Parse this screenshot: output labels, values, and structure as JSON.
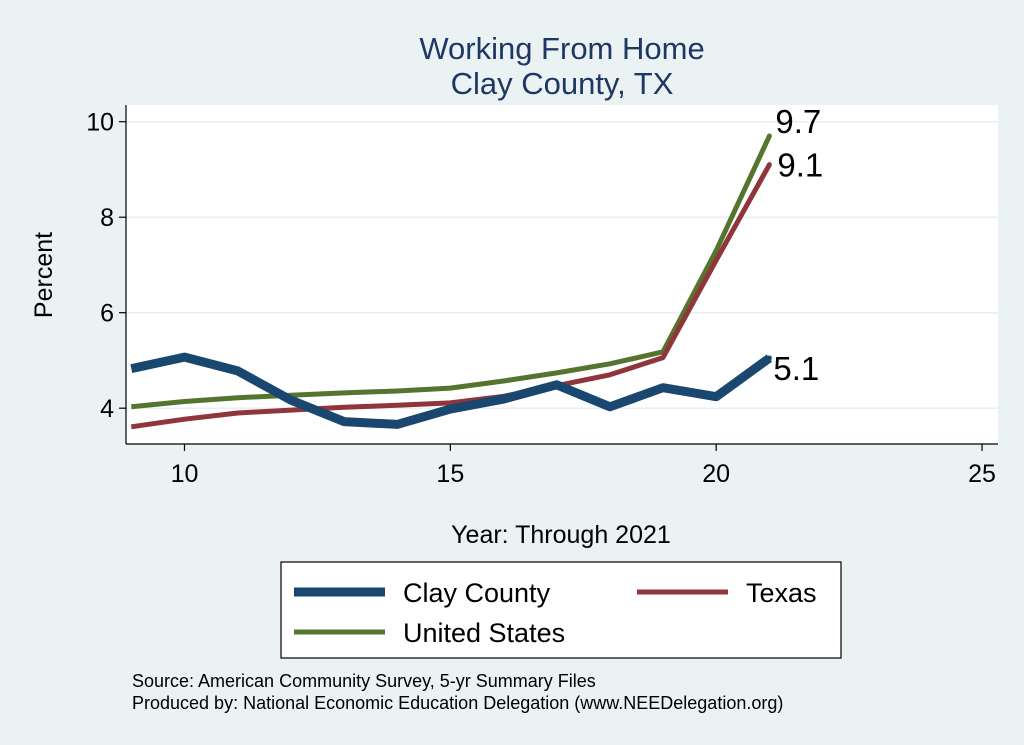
{
  "chart_data": {
    "type": "line",
    "title": "Working From Home",
    "subtitle": "Clay County, TX",
    "xlabel": "Year: Through 2021",
    "ylabel": "Percent",
    "xlim": [
      8.9,
      25.3
    ],
    "ylim": [
      3.25,
      10.35
    ],
    "xticks": [
      10,
      15,
      20,
      25
    ],
    "yticks": [
      4,
      6,
      8,
      10
    ],
    "grid": true,
    "x": [
      9,
      10,
      11,
      12,
      13,
      14,
      15,
      16,
      17,
      18,
      19,
      20,
      21
    ],
    "series": [
      {
        "name": "Clay County",
        "color": "#1a476f",
        "stroke": "thick",
        "values": [
          4.83,
          5.07,
          4.78,
          4.17,
          3.72,
          3.66,
          3.98,
          4.19,
          4.49,
          4.03,
          4.43,
          4.24,
          5.05
        ],
        "end_label": "5.1"
      },
      {
        "name": "Texas",
        "color": "#90353b",
        "stroke": "medium",
        "values": [
          3.61,
          3.77,
          3.9,
          3.96,
          4.02,
          4.06,
          4.11,
          4.25,
          4.47,
          4.7,
          5.06,
          7.1,
          9.1
        ],
        "end_label": "9.1"
      },
      {
        "name": "United States",
        "color": "#55752f",
        "stroke": "medium",
        "values": [
          4.03,
          4.14,
          4.22,
          4.27,
          4.32,
          4.36,
          4.42,
          4.57,
          4.74,
          4.93,
          5.18,
          7.3,
          9.7
        ],
        "end_label": "9.7"
      }
    ],
    "legend": {
      "placement": "bottom",
      "entries": [
        "Clay County",
        "Texas",
        "United States"
      ]
    },
    "notes": [
      "Source: American Community Survey, 5-yr Summary Files",
      "Produced by: National Economic Education Delegation (www.NEEDelegation.org)"
    ]
  },
  "colors": {
    "background": "#eaf2f3",
    "plot_area": "#ffffff",
    "title": "#1e3765",
    "grid": "#e8eff2"
  }
}
